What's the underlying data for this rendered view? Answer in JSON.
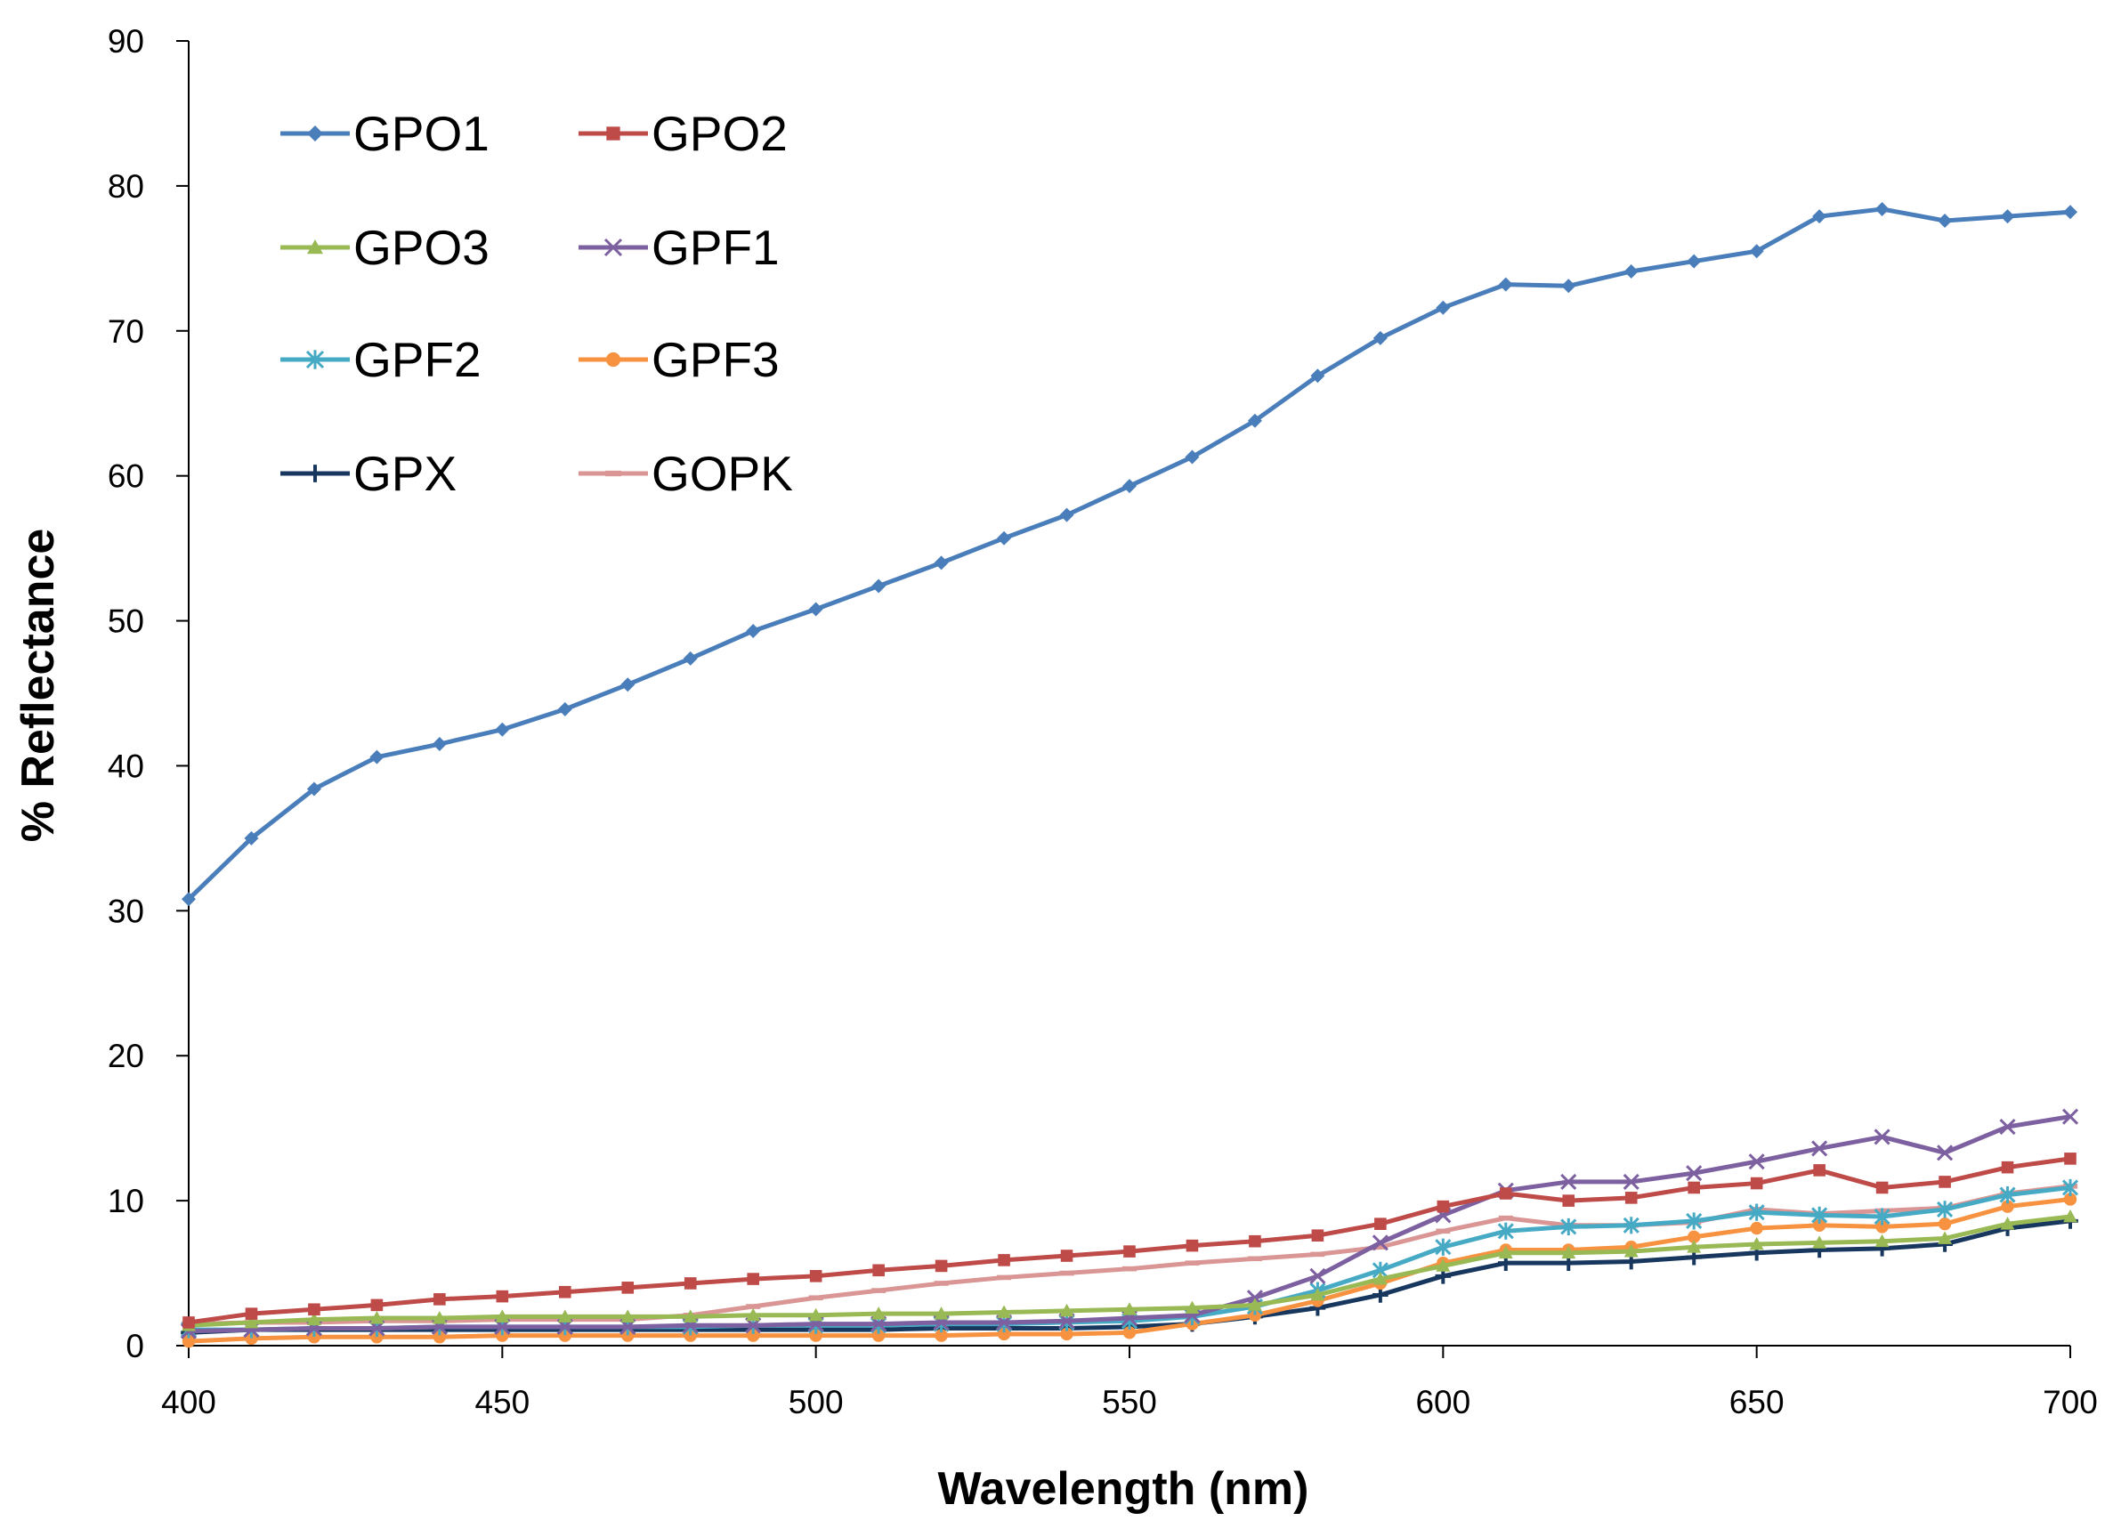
{
  "chart_data": {
    "type": "line",
    "title": "",
    "xlabel": "Wavelength (nm)",
    "ylabel": "% Reflectance",
    "xlim": [
      400,
      700
    ],
    "ylim": [
      0,
      90
    ],
    "xticks": [
      400,
      450,
      500,
      550,
      600,
      650,
      700
    ],
    "yticks": [
      0,
      10,
      20,
      30,
      40,
      50,
      60,
      70,
      80,
      90
    ],
    "grid": false,
    "legend_position": "top-left",
    "x": [
      400,
      410,
      420,
      430,
      440,
      450,
      460,
      470,
      480,
      490,
      500,
      510,
      520,
      530,
      540,
      550,
      560,
      570,
      580,
      590,
      600,
      610,
      620,
      630,
      640,
      650,
      660,
      670,
      680,
      690,
      700
    ],
    "series": [
      {
        "name": "GPO1",
        "color": "#4a7ebb",
        "marker": "diamond",
        "values": [
          30.8,
          35.0,
          38.4,
          40.6,
          41.5,
          42.5,
          43.9,
          45.6,
          47.4,
          49.3,
          50.8,
          52.4,
          54.0,
          55.7,
          57.3,
          59.3,
          61.3,
          63.8,
          66.9,
          69.5,
          71.6,
          73.2,
          73.1,
          74.1,
          74.8,
          75.5,
          77.9,
          78.4,
          77.6,
          77.9,
          78.2
        ]
      },
      {
        "name": "GPO2",
        "color": "#be4b48",
        "marker": "square",
        "values": [
          1.6,
          2.2,
          2.5,
          2.8,
          3.2,
          3.4,
          3.7,
          4.0,
          4.3,
          4.6,
          4.8,
          5.2,
          5.5,
          5.9,
          6.2,
          6.5,
          6.9,
          7.2,
          7.6,
          8.4,
          9.6,
          10.5,
          10.0,
          10.2,
          10.9,
          11.2,
          12.1,
          10.9,
          11.3,
          12.3,
          12.9
        ]
      },
      {
        "name": "GPO3",
        "color": "#98b954",
        "marker": "triangle",
        "values": [
          1.4,
          1.6,
          1.8,
          1.9,
          1.9,
          2.0,
          2.0,
          2.0,
          2.0,
          2.1,
          2.1,
          2.2,
          2.2,
          2.3,
          2.4,
          2.5,
          2.6,
          2.8,
          3.5,
          4.6,
          5.5,
          6.4,
          6.4,
          6.5,
          6.8,
          7.0,
          7.1,
          7.2,
          7.4,
          8.4,
          8.9
        ]
      },
      {
        "name": "GPF1",
        "color": "#7d60a0",
        "marker": "x",
        "values": [
          1.0,
          1.1,
          1.2,
          1.2,
          1.3,
          1.3,
          1.3,
          1.3,
          1.4,
          1.4,
          1.5,
          1.5,
          1.6,
          1.6,
          1.7,
          1.9,
          2.1,
          3.3,
          4.8,
          7.1,
          9.0,
          10.7,
          11.3,
          11.3,
          11.9,
          12.7,
          13.6,
          14.4,
          13.3,
          15.1,
          15.8
        ]
      },
      {
        "name": "GPF2",
        "color": "#46aac5",
        "marker": "asterisk",
        "values": [
          1.1,
          1.1,
          1.2,
          1.2,
          1.3,
          1.3,
          1.3,
          1.3,
          1.3,
          1.4,
          1.4,
          1.4,
          1.5,
          1.5,
          1.6,
          1.7,
          2.0,
          2.7,
          3.8,
          5.2,
          6.8,
          7.9,
          8.2,
          8.3,
          8.6,
          9.2,
          9.0,
          8.9,
          9.4,
          10.4,
          10.9
        ]
      },
      {
        "name": "GPF3",
        "color": "#f69240",
        "marker": "circle",
        "values": [
          0.3,
          0.5,
          0.6,
          0.6,
          0.6,
          0.7,
          0.7,
          0.7,
          0.7,
          0.7,
          0.7,
          0.7,
          0.7,
          0.8,
          0.8,
          0.9,
          1.5,
          2.1,
          3.1,
          4.3,
          5.7,
          6.6,
          6.6,
          6.8,
          7.5,
          8.1,
          8.3,
          8.2,
          8.4,
          9.6,
          10.1
        ]
      },
      {
        "name": "GPX",
        "color": "#17375e",
        "marker": "plus",
        "values": [
          0.9,
          1.1,
          1.1,
          1.1,
          1.1,
          1.1,
          1.1,
          1.1,
          1.1,
          1.1,
          1.1,
          1.1,
          1.2,
          1.2,
          1.2,
          1.3,
          1.5,
          2.0,
          2.6,
          3.5,
          4.8,
          5.7,
          5.7,
          5.8,
          6.1,
          6.4,
          6.6,
          6.7,
          7.0,
          8.1,
          8.6
        ]
      },
      {
        "name": "GOPK",
        "color": "#d99694",
        "marker": "dash",
        "values": [
          1.5,
          1.6,
          1.6,
          1.7,
          1.7,
          1.8,
          1.8,
          1.8,
          2.1,
          2.7,
          3.3,
          3.8,
          4.3,
          4.7,
          5.0,
          5.3,
          5.7,
          6.0,
          6.3,
          6.8,
          7.9,
          8.8,
          8.3,
          8.3,
          8.5,
          9.4,
          9.1,
          9.3,
          9.5,
          10.5,
          11.0
        ]
      }
    ]
  }
}
